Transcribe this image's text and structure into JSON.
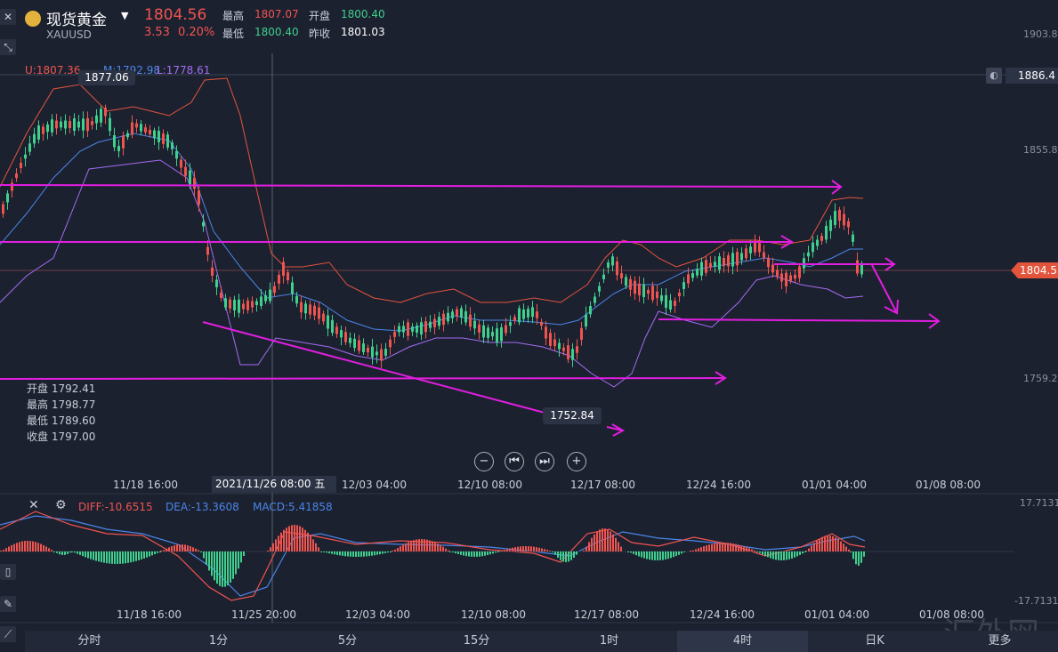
{
  "symbol": {
    "name": "现货黄金",
    "code": "XAUUSD",
    "price": "1804.56",
    "change": "3.53",
    "change_pct": "0.20%"
  },
  "stats": {
    "high_label": "最高",
    "high": "1807.07",
    "open_label": "开盘",
    "open": "1800.40",
    "low_label": "最低",
    "low": "1800.40",
    "prev_label": "昨收",
    "prev": "1801.03"
  },
  "boll": {
    "u": "U:1807.36",
    "m": "M:1792.98",
    "l": "L:1778.61"
  },
  "price_axis": {
    "p1": "1903.8",
    "p2": "1886.4",
    "p3": "1855.8",
    "p4": "1804.5",
    "p5": "1759.2"
  },
  "peak_label": "1877.06",
  "trough_label": "1752.84",
  "ohlc_box": {
    "open": "开盘 1792.41",
    "high": "最高 1798.77",
    "low": "最低 1789.60",
    "close": "收盘 1797.00"
  },
  "time_axis": [
    "11/18 16:00",
    "12/03 04:00",
    "12/10 08:00",
    "12/17 08:00",
    "12/24 16:00",
    "01/01 04:00",
    "01/08 08:00"
  ],
  "crosshair_time": "2021/11/26 08:00 五",
  "macd": {
    "diff": "DIFF:-10.6515",
    "dea": "DEA:-13.3608",
    "macd": "MACD:5.41858",
    "top": "17.7131",
    "bottom": "-17.7131"
  },
  "macd_time_axis": [
    "11/18 16:00",
    "11/25 20:00",
    "12/03 04:00",
    "12/10 08:00",
    "12/17 08:00",
    "12/24 16:00",
    "01/01 04:00",
    "01/08 08:00"
  ],
  "tabs": [
    "分时",
    "1分",
    "5分",
    "15分",
    "1时",
    "4时",
    "日K",
    "更多"
  ],
  "active_tab": "4时",
  "watermark": "汇外网",
  "colors": {
    "up": "#f0544f",
    "down": "#3fd08d",
    "magenta": "#e21ee0",
    "boll_mid": "#4a86e8",
    "boll_band": "#a46cf0"
  }
}
